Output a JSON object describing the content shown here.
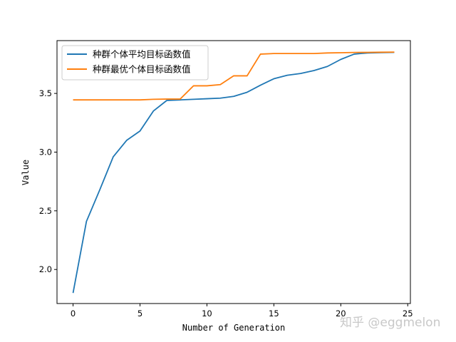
{
  "chart_data": {
    "type": "line",
    "xlabel": "Number of Generation",
    "ylabel": "Value",
    "xlim": [
      -1.2,
      25.2
    ],
    "ylim": [
      1.71,
      3.95
    ],
    "xticks": [
      0,
      5,
      10,
      15,
      20,
      25
    ],
    "yticks": [
      2.0,
      2.5,
      3.0,
      3.5
    ],
    "ytick_labels": [
      "2.0",
      "2.5",
      "3.0",
      "3.5"
    ],
    "grid": false,
    "legend_position": "top-left",
    "x": [
      0,
      1,
      2,
      3,
      4,
      5,
      6,
      7,
      8,
      9,
      10,
      11,
      12,
      13,
      14,
      15,
      16,
      17,
      18,
      19,
      20,
      21,
      22,
      23,
      24
    ],
    "series": [
      {
        "name": "种群个体平均目标函数值",
        "color": "#1f77b4",
        "values": [
          1.8,
          2.41,
          2.68,
          2.96,
          3.1,
          3.18,
          3.35,
          3.44,
          3.445,
          3.45,
          3.455,
          3.46,
          3.475,
          3.51,
          3.57,
          3.625,
          3.655,
          3.67,
          3.695,
          3.73,
          3.79,
          3.835,
          3.845,
          3.848,
          3.85
        ]
      },
      {
        "name": "种群最优个体目标函数值",
        "color": "#ff7f0e",
        "values": [
          3.445,
          3.445,
          3.445,
          3.445,
          3.445,
          3.445,
          3.45,
          3.452,
          3.452,
          3.565,
          3.565,
          3.575,
          3.65,
          3.65,
          3.835,
          3.84,
          3.84,
          3.84,
          3.84,
          3.845,
          3.847,
          3.849,
          3.85,
          3.851,
          3.852
        ]
      }
    ]
  },
  "watermark": {
    "text": "知乎 @eggmelon"
  }
}
